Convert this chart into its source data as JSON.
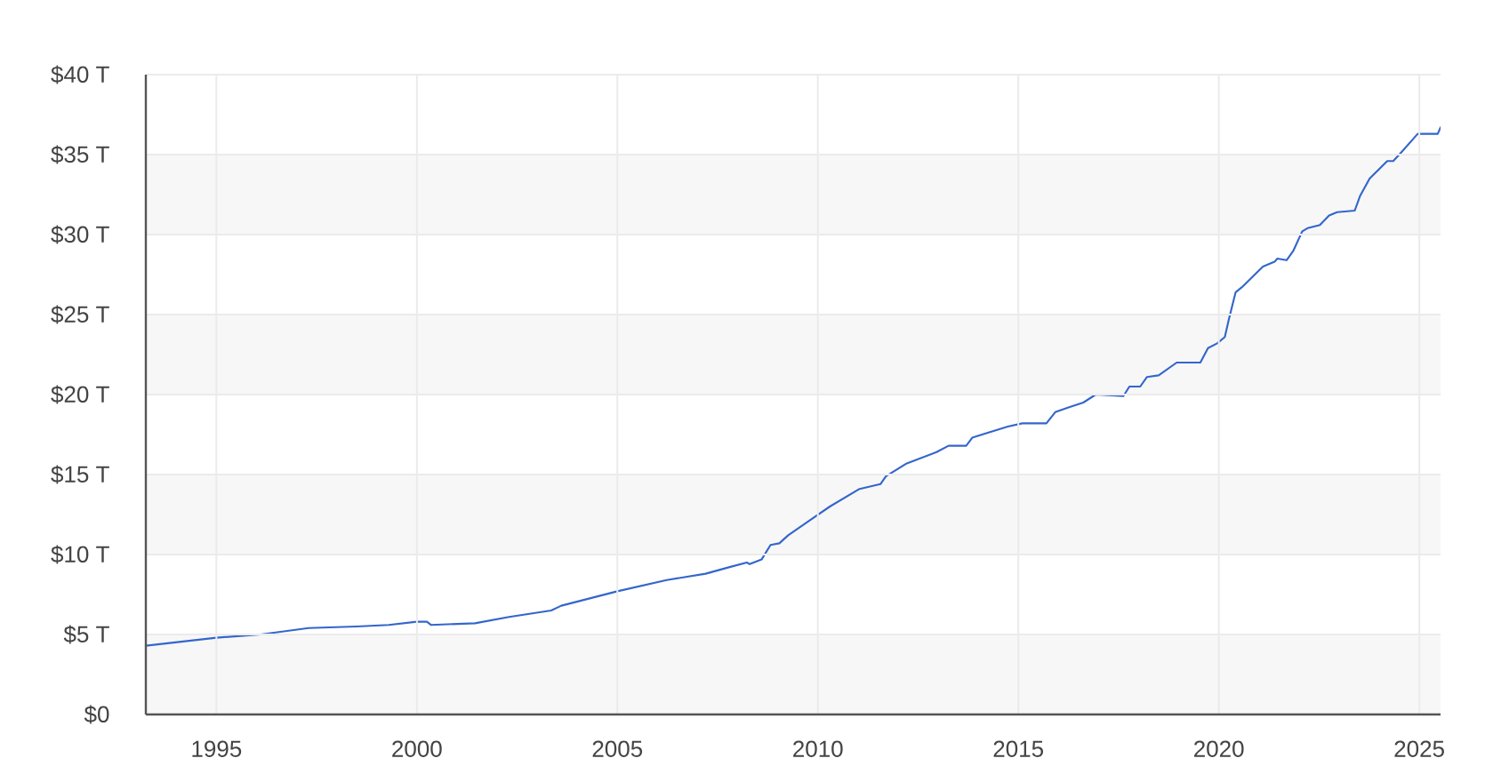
{
  "chart_data": {
    "type": "line",
    "x": [
      1993.24,
      1995.0,
      1996.1,
      1997.3,
      1998.5,
      1999.3,
      2000.0,
      2000.25,
      2000.35,
      2001.45,
      2002.3,
      2003.35,
      2003.6,
      2005.0,
      2006.23,
      2007.2,
      2007.78,
      2008.23,
      2008.3,
      2008.6,
      2008.82,
      2009.04,
      2009.26,
      2009.78,
      2010.3,
      2011.04,
      2011.56,
      2011.7,
      2012.22,
      2012.96,
      2013.26,
      2013.7,
      2013.85,
      2014.22,
      2014.74,
      2015.1,
      2015.7,
      2015.92,
      2016.25,
      2016.62,
      2016.93,
      2017.62,
      2017.77,
      2018.04,
      2018.21,
      2018.5,
      2018.95,
      2019.54,
      2019.73,
      2019.96,
      2020.15,
      2020.25,
      2020.42,
      2020.57,
      2021.1,
      2021.39,
      2021.46,
      2021.69,
      2021.86,
      2022.08,
      2022.21,
      2022.52,
      2022.75,
      2022.95,
      2023.39,
      2023.52,
      2023.76,
      2024.2,
      2024.35,
      2024.57,
      2024.96,
      2025.46,
      2025.53
    ],
    "series": [
      {
        "color": "#3366cc",
        "values": [
          4.3,
          4.8,
          5.0,
          5.4,
          5.5,
          5.6,
          5.8,
          5.8,
          5.6,
          5.7,
          6.1,
          6.5,
          6.8,
          7.7,
          8.4,
          8.8,
          9.2,
          9.5,
          9.4,
          9.7,
          10.6,
          10.7,
          11.2,
          12.1,
          13.0,
          14.1,
          14.4,
          14.9,
          15.7,
          16.4,
          16.8,
          16.8,
          17.3,
          17.6,
          18.0,
          18.2,
          18.2,
          18.9,
          19.2,
          19.5,
          20.0,
          19.9,
          20.5,
          20.5,
          21.1,
          21.2,
          22.0,
          22.0,
          22.9,
          23.2,
          23.6,
          24.7,
          26.4,
          26.7,
          28.0,
          28.3,
          28.5,
          28.4,
          29.0,
          30.2,
          30.4,
          30.6,
          31.2,
          31.4,
          31.5,
          32.4,
          33.5,
          34.6,
          34.6,
          35.2,
          36.3,
          36.3,
          36.7
        ]
      }
    ],
    "xlim": [
      1993.24,
      2025.53
    ],
    "ylim": [
      0,
      40
    ],
    "xticks": [
      1995,
      2000,
      2005,
      2010,
      2015,
      2020,
      2025
    ],
    "yticks": [
      {
        "value": 0,
        "label": "$0"
      },
      {
        "value": 5,
        "label": "$5 T"
      },
      {
        "value": 10,
        "label": "$10 T"
      },
      {
        "value": 15,
        "label": "$15 T"
      },
      {
        "value": 20,
        "label": "$20 T"
      },
      {
        "value": 25,
        "label": "$25 T"
      },
      {
        "value": 30,
        "label": "$30 T"
      },
      {
        "value": 35,
        "label": "$35 T"
      },
      {
        "value": 40,
        "label": "$40 T"
      }
    ],
    "grid": true,
    "bands": [
      {
        "axis": "y",
        "from": 0,
        "to": 5,
        "color": "#f7f7f7"
      },
      {
        "axis": "y",
        "from": 10,
        "to": 15,
        "color": "#f7f7f7"
      },
      {
        "axis": "y",
        "from": 20,
        "to": 25,
        "color": "#f7f7f7"
      },
      {
        "axis": "y",
        "from": 30,
        "to": 35,
        "color": "#f7f7f7"
      }
    ],
    "marker": "none",
    "line_style": "solid"
  }
}
